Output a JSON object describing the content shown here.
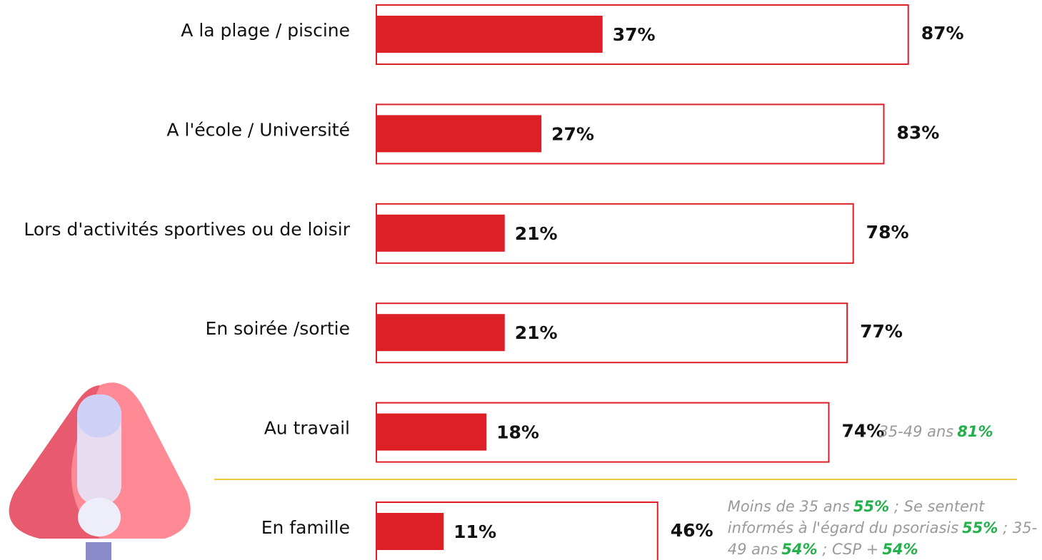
{
  "chart_data": {
    "type": "bar",
    "orientation": "horizontal",
    "categories": [
      "A la plage / piscine",
      "A l'école / Université",
      "Lors d'activités sportives ou de loisir",
      "En soirée /sortie",
      "Au travail",
      "En famille"
    ],
    "series": [
      {
        "style": "outline",
        "color": "#dd1f26",
        "values": [
          87,
          83,
          78,
          77,
          74,
          46
        ],
        "value_labels": [
          "87%",
          "83%",
          "78%",
          "77%",
          "74%",
          "46%"
        ]
      },
      {
        "style": "filled",
        "color": "#dd1f26",
        "values": [
          37,
          27,
          21,
          21,
          18,
          11
        ],
        "value_labels": [
          "37%",
          "27%",
          "21%",
          "21%",
          "18%",
          "11%"
        ]
      }
    ],
    "xlim": [
      0,
      100
    ],
    "annotations": [
      {
        "category": 4,
        "items": [
          {
            "label": "35-49 ans",
            "value": "81%"
          }
        ]
      },
      {
        "category": 5,
        "items": [
          {
            "label": "Moins de 35 ans",
            "value": "55%"
          },
          {
            "label": "; Se sentent informés à l'égard du psoriasis",
            "value": "55%"
          },
          {
            "label": "; 35-49 ans",
            "value": "54%"
          },
          {
            "label": "; CSP +",
            "value": "54%"
          }
        ]
      }
    ]
  }
}
